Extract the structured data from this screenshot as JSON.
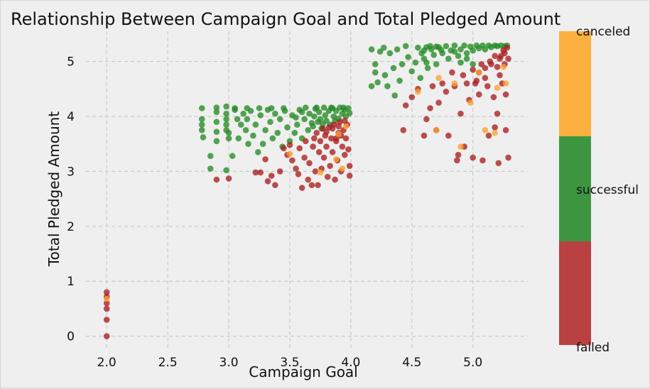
{
  "chart_data": {
    "type": "scatter",
    "title": "Relationship Between Campaign Goal and Total Pledged Amount",
    "xlabel": "Campaign Goal",
    "ylabel": "Total Pledged Amount",
    "xlim": [
      1.83,
      5.45
    ],
    "ylim": [
      -0.25,
      5.55
    ],
    "xticks": [
      "2.0",
      "2.5",
      "3.0",
      "3.5",
      "4.0",
      "4.5",
      "5.0"
    ],
    "yticks": [
      "0",
      "1",
      "2",
      "3",
      "4",
      "5"
    ],
    "grid": true,
    "colorbar": {
      "position": "right",
      "labels": [
        "failed",
        "successful",
        "canceled"
      ],
      "colors": {
        "failed": "#b94141",
        "successful": "#3e9540",
        "canceled": "#fbb040"
      }
    },
    "point_colors": {
      "failed": "#aa1e1e",
      "successful": "#248a24",
      "canceled": "#f9a330"
    },
    "series": [
      {
        "name": "successful",
        "points": [
          [
            2.78,
            4.15
          ],
          [
            2.78,
            3.95
          ],
          [
            2.78,
            3.85
          ],
          [
            2.78,
            3.75
          ],
          [
            2.79,
            3.62
          ],
          [
            2.85,
            3.28
          ],
          [
            2.85,
            3.05
          ],
          [
            2.9,
            4.16
          ],
          [
            2.9,
            4.08
          ],
          [
            2.9,
            3.9
          ],
          [
            2.9,
            3.72
          ],
          [
            2.9,
            3.55
          ],
          [
            2.98,
            4.18
          ],
          [
            2.98,
            4.05
          ],
          [
            2.98,
            3.95
          ],
          [
            2.98,
            3.85
          ],
          [
            2.98,
            3.75
          ],
          [
            2.98,
            3.02
          ],
          [
            3.0,
            3.6
          ],
          [
            3.0,
            3.7
          ],
          [
            3.03,
            3.28
          ],
          [
            3.05,
            4.12
          ],
          [
            3.07,
            3.95
          ],
          [
            3.08,
            3.6
          ],
          [
            3.1,
            3.85
          ],
          [
            3.12,
            4.05
          ],
          [
            3.14,
            3.75
          ],
          [
            3.15,
            3.95
          ],
          [
            3.16,
            3.5
          ],
          [
            3.18,
            4.1
          ],
          [
            3.2,
            3.65
          ],
          [
            3.22,
            3.85
          ],
          [
            3.24,
            3.35
          ],
          [
            3.26,
            4.02
          ],
          [
            3.28,
            3.5
          ],
          [
            3.3,
            3.75
          ],
          [
            3.32,
            4.12
          ],
          [
            3.34,
            3.9
          ],
          [
            3.36,
            3.6
          ],
          [
            3.38,
            4.05
          ],
          [
            3.4,
            3.7
          ],
          [
            3.42,
            3.95
          ],
          [
            3.44,
            3.45
          ],
          [
            3.46,
            4.1
          ],
          [
            3.48,
            3.8
          ],
          [
            3.5,
            3.55
          ],
          [
            3.52,
            4.02
          ],
          [
            3.54,
            3.7
          ],
          [
            3.56,
            3.85
          ],
          [
            3.58,
            4.12
          ],
          [
            3.6,
            3.6
          ],
          [
            3.62,
            3.95
          ],
          [
            3.63,
            4.16
          ],
          [
            3.65,
            3.75
          ],
          [
            3.66,
            4.05
          ],
          [
            3.68,
            3.88
          ],
          [
            3.7,
            4.0
          ],
          [
            3.71,
            4.14
          ],
          [
            3.73,
            3.9
          ],
          [
            3.74,
            4.08
          ],
          [
            3.75,
            3.95
          ],
          [
            3.76,
            3.78
          ],
          [
            3.78,
            4.16
          ],
          [
            3.79,
            4.02
          ],
          [
            3.8,
            3.92
          ],
          [
            3.82,
            4.1
          ],
          [
            3.83,
            3.85
          ],
          [
            3.85,
            4.15
          ],
          [
            3.86,
            4.0
          ],
          [
            3.88,
            4.1
          ],
          [
            3.9,
            3.96
          ],
          [
            3.91,
            4.16
          ],
          [
            3.93,
            4.05
          ],
          [
            3.95,
            4.12
          ],
          [
            3.96,
            4.0
          ],
          [
            3.98,
            4.15
          ],
          [
            3.99,
            4.06
          ],
          [
            3.6,
            4.08
          ],
          [
            3.55,
            3.98
          ],
          [
            3.45,
            4.15
          ],
          [
            3.35,
            4.15
          ],
          [
            3.25,
            4.15
          ],
          [
            3.15,
            4.15
          ],
          [
            3.05,
            4.15
          ],
          [
            3.72,
            4.16
          ],
          [
            3.84,
            4.16
          ],
          [
            3.94,
            4.16
          ],
          [
            3.69,
            3.82
          ],
          [
            3.77,
            3.86
          ],
          [
            3.87,
            3.92
          ],
          [
            4.17,
            5.22
          ],
          [
            4.17,
            4.55
          ],
          [
            4.2,
            4.95
          ],
          [
            4.2,
            4.8
          ],
          [
            4.22,
            4.62
          ],
          [
            4.24,
            5.18
          ],
          [
            4.27,
            5.25
          ],
          [
            4.28,
            4.75
          ],
          [
            4.3,
            4.55
          ],
          [
            4.32,
            5.15
          ],
          [
            4.35,
            4.88
          ],
          [
            4.36,
            4.38
          ],
          [
            4.38,
            5.22
          ],
          [
            4.4,
            4.65
          ],
          [
            4.42,
            4.95
          ],
          [
            4.45,
            5.28
          ],
          [
            4.47,
            5.08
          ],
          [
            4.5,
            4.82
          ],
          [
            4.53,
            4.98
          ],
          [
            4.55,
            5.25
          ],
          [
            4.57,
            4.7
          ],
          [
            4.6,
            5.2
          ],
          [
            4.6,
            5.05
          ],
          [
            4.63,
            4.88
          ],
          [
            4.65,
            5.28
          ],
          [
            4.68,
            5.12
          ],
          [
            4.7,
            4.95
          ],
          [
            4.72,
            5.26
          ],
          [
            4.75,
            5.15
          ],
          [
            4.78,
            5.28
          ],
          [
            4.8,
            5.05
          ],
          [
            4.82,
            5.2
          ],
          [
            4.85,
            5.29
          ],
          [
            4.88,
            5.1
          ],
          [
            4.9,
            5.22
          ],
          [
            4.93,
            5.29
          ],
          [
            4.95,
            5.15
          ],
          [
            4.98,
            5.27
          ],
          [
            5.0,
            5.2
          ],
          [
            5.03,
            5.29
          ],
          [
            5.05,
            5.24
          ],
          [
            5.08,
            5.29
          ],
          [
            5.1,
            5.22
          ],
          [
            5.13,
            5.29
          ],
          [
            5.15,
            5.26
          ],
          [
            5.18,
            5.29
          ],
          [
            5.2,
            5.28
          ],
          [
            5.23,
            5.29
          ],
          [
            5.26,
            5.28
          ],
          [
            5.28,
            5.29
          ],
          [
            4.62,
            5.26
          ],
          [
            4.66,
            5.22
          ],
          [
            4.7,
            5.27
          ],
          [
            4.74,
            5.21
          ],
          [
            4.58,
            5.15
          ],
          [
            4.62,
            4.98
          ],
          [
            4.85,
            5.18
          ],
          [
            4.95,
            5.05
          ],
          [
            5.0,
            4.95
          ],
          [
            4.9,
            4.98
          ]
        ]
      },
      {
        "name": "failed",
        "points": [
          [
            2.0,
            0.0
          ],
          [
            2.0,
            0.3
          ],
          [
            2.0,
            0.5
          ],
          [
            2.0,
            0.6
          ],
          [
            2.0,
            0.72
          ],
          [
            2.0,
            0.8
          ],
          [
            2.9,
            2.85
          ],
          [
            3.0,
            2.87
          ],
          [
            3.22,
            2.98
          ],
          [
            3.26,
            2.98
          ],
          [
            3.3,
            3.22
          ],
          [
            3.32,
            2.82
          ],
          [
            3.35,
            2.92
          ],
          [
            3.38,
            2.75
          ],
          [
            3.42,
            3.0
          ],
          [
            3.45,
            3.42
          ],
          [
            3.48,
            3.3
          ],
          [
            3.5,
            3.48
          ],
          [
            3.52,
            3.2
          ],
          [
            3.55,
            3.05
          ],
          [
            3.57,
            2.95
          ],
          [
            3.58,
            3.42
          ],
          [
            3.6,
            2.7
          ],
          [
            3.62,
            3.25
          ],
          [
            3.63,
            3.55
          ],
          [
            3.65,
            2.85
          ],
          [
            3.66,
            3.15
          ],
          [
            3.68,
            2.75
          ],
          [
            3.69,
            3.45
          ],
          [
            3.7,
            3.6
          ],
          [
            3.71,
            3.0
          ],
          [
            3.72,
            3.7
          ],
          [
            3.73,
            2.75
          ],
          [
            3.74,
            3.35
          ],
          [
            3.75,
            3.55
          ],
          [
            3.76,
            3.05
          ],
          [
            3.77,
            3.78
          ],
          [
            3.78,
            3.25
          ],
          [
            3.79,
            3.65
          ],
          [
            3.8,
            3.45
          ],
          [
            3.81,
            2.9
          ],
          [
            3.82,
            3.8
          ],
          [
            3.83,
            3.1
          ],
          [
            3.84,
            3.6
          ],
          [
            3.85,
            3.35
          ],
          [
            3.86,
            3.85
          ],
          [
            3.87,
            2.85
          ],
          [
            3.88,
            3.55
          ],
          [
            3.89,
            3.2
          ],
          [
            3.9,
            3.7
          ],
          [
            3.91,
            3.9
          ],
          [
            3.92,
            3.0
          ],
          [
            3.93,
            3.45
          ],
          [
            3.94,
            3.75
          ],
          [
            3.95,
            3.3
          ],
          [
            3.96,
            3.6
          ],
          [
            3.97,
            3.85
          ],
          [
            3.98,
            3.4
          ],
          [
            3.99,
            3.1
          ],
          [
            3.99,
            2.92
          ],
          [
            3.8,
            3.72
          ],
          [
            3.85,
            3.78
          ],
          [
            3.9,
            3.82
          ],
          [
            3.95,
            3.92
          ],
          [
            3.88,
            3.6
          ],
          [
            3.92,
            3.65
          ],
          [
            4.43,
            3.75
          ],
          [
            4.45,
            4.2
          ],
          [
            4.5,
            4.35
          ],
          [
            4.55,
            4.5
          ],
          [
            4.6,
            3.65
          ],
          [
            4.62,
            3.95
          ],
          [
            4.65,
            4.15
          ],
          [
            4.67,
            4.55
          ],
          [
            4.7,
            3.75
          ],
          [
            4.72,
            4.25
          ],
          [
            4.75,
            4.6
          ],
          [
            4.78,
            4.45
          ],
          [
            4.8,
            3.65
          ],
          [
            4.83,
            4.8
          ],
          [
            4.85,
            4.55
          ],
          [
            4.87,
            3.2
          ],
          [
            4.88,
            3.3
          ],
          [
            4.9,
            4.05
          ],
          [
            4.92,
            4.75
          ],
          [
            4.93,
            3.45
          ],
          [
            4.95,
            4.6
          ],
          [
            4.97,
            4.3
          ],
          [
            5.0,
            4.85
          ],
          [
            5.0,
            3.25
          ],
          [
            5.03,
            4.65
          ],
          [
            5.05,
            4.4
          ],
          [
            5.07,
            4.95
          ],
          [
            5.08,
            3.2
          ],
          [
            5.1,
            4.7
          ],
          [
            5.12,
            4.55
          ],
          [
            5.13,
            3.65
          ],
          [
            5.15,
            4.95
          ],
          [
            5.17,
            4.35
          ],
          [
            5.18,
            3.8
          ],
          [
            5.2,
            4.9
          ],
          [
            5.2,
            4.05
          ],
          [
            5.21,
            3.15
          ],
          [
            5.22,
            4.75
          ],
          [
            5.23,
            5.1
          ],
          [
            5.24,
            4.6
          ],
          [
            5.25,
            5.2
          ],
          [
            5.26,
            4.95
          ],
          [
            5.27,
            4.4
          ],
          [
            5.27,
            3.75
          ],
          [
            5.28,
            5.25
          ],
          [
            5.29,
            3.25
          ],
          [
            5.29,
            5.05
          ],
          [
            5.26,
            5.15
          ],
          [
            5.22,
            5.05
          ],
          [
            5.18,
            5.1
          ],
          [
            5.14,
            5.0
          ],
          [
            5.1,
            4.88
          ],
          [
            5.05,
            4.8
          ],
          [
            5.02,
            4.6
          ]
        ]
      },
      {
        "name": "canceled",
        "points": [
          [
            2.0,
            0.68
          ],
          [
            3.5,
            3.32
          ],
          [
            3.75,
            2.98
          ],
          [
            3.88,
            3.22
          ],
          [
            3.9,
            3.68
          ],
          [
            3.93,
            3.05
          ],
          [
            3.96,
            3.82
          ],
          [
            4.55,
            4.45
          ],
          [
            4.72,
            4.7
          ],
          [
            4.9,
            3.45
          ],
          [
            4.98,
            4.25
          ],
          [
            5.05,
            4.8
          ],
          [
            5.1,
            3.75
          ],
          [
            5.18,
            3.7
          ],
          [
            5.2,
            4.52
          ],
          [
            5.25,
            4.9
          ],
          [
            5.27,
            4.6
          ],
          [
            4.85,
            4.6
          ],
          [
            4.7,
            3.75
          ]
        ]
      }
    ]
  }
}
